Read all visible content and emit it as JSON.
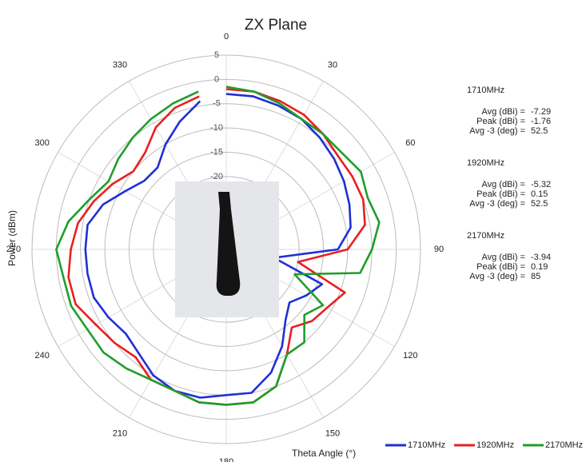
{
  "chart_data": {
    "type": "polar",
    "title": "ZX Plane",
    "x_label": "Theta  Angle (°)",
    "y_label": "Power (dBm)",
    "theta": [
      0,
      10,
      20,
      30,
      40,
      50,
      60,
      70,
      80,
      90,
      100,
      110,
      120,
      130,
      140,
      150,
      160,
      170,
      180,
      190,
      200,
      210,
      220,
      230,
      240,
      250,
      260,
      270,
      280,
      290,
      300,
      310,
      320,
      330,
      340,
      350
    ],
    "thetaticks": [
      0,
      30,
      60,
      90,
      120,
      150,
      180,
      210,
      240,
      270,
      300,
      330
    ],
    "rlim": [
      -35,
      5
    ],
    "rticks": [
      5,
      0,
      -5,
      -10,
      -15,
      -20
    ],
    "series": [
      {
        "name": "1710MHz",
        "color": "#1f2fd6",
        "values": [
          -3,
          -3,
          -3.5,
          -4,
          -5,
          -6,
          -7,
          -8,
          -9,
          -12,
          -25,
          -14,
          -16,
          -18,
          -16,
          -12,
          -8,
          -5,
          -5,
          -4,
          -4,
          -5,
          -7,
          -8,
          -7,
          -6,
          -6,
          -6,
          -6,
          -8,
          -11,
          -13,
          -13,
          -10,
          -7,
          -4
        ]
      },
      {
        "name": "1920MHz",
        "color": "#e82020",
        "values": [
          -2,
          -2,
          -2.5,
          -3,
          -4,
          -5,
          -5,
          -5,
          -6,
          -10,
          -20,
          -9,
          -11,
          -12,
          -14,
          -10,
          -5,
          -3,
          -3,
          -3,
          -4,
          -4,
          -6,
          -5,
          -4,
          -2,
          -2,
          -3,
          -4,
          -6,
          -8,
          -10,
          -9,
          -6,
          -4,
          -3
        ]
      },
      {
        "name": "2170MHz",
        "color": "#1f9e2a",
        "values": [
          -1.5,
          -2,
          -3,
          -4,
          -4,
          -4,
          -3,
          -4,
          -3,
          -5,
          -7,
          -20,
          -12,
          -14,
          -10,
          -10,
          -5,
          -3,
          -3,
          -3,
          -4,
          -4,
          -3,
          -2,
          -2,
          -1,
          -1,
          0,
          -2,
          -5,
          -7,
          -6,
          -5,
          -4,
          -3,
          -2
        ]
      }
    ],
    "stats": [
      {
        "heading": "1710MHz",
        "rows": [
          {
            "label": "Avg (dBi) =",
            "value": "-7.29"
          },
          {
            "label": "Peak (dBi) =",
            "value": "-1.76"
          },
          {
            "label": "Avg -3 (deg) =",
            "value": "52.5"
          }
        ]
      },
      {
        "heading": "1920MHz",
        "rows": [
          {
            "label": "Avg (dBi) =",
            "value": "-5.32"
          },
          {
            "label": "Peak (dBi) =",
            "value": "0.15"
          },
          {
            "label": "Avg -3 (deg) =",
            "value": "52.5"
          }
        ]
      },
      {
        "heading": "2170MHz",
        "rows": [
          {
            "label": "Avg (dBi) =",
            "value": "-3.94"
          },
          {
            "label": "Peak (dBi) =",
            "value": "0.19"
          },
          {
            "label": "Avg -3 (deg) =",
            "value": "85"
          }
        ]
      }
    ]
  }
}
